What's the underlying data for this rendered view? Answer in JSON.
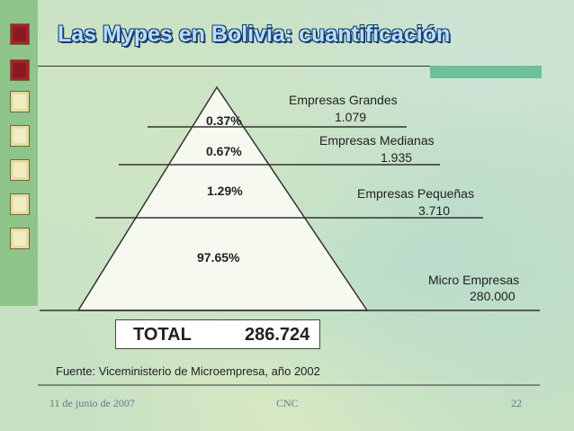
{
  "title": "Las Mypes en Bolivia: cuantificación",
  "pyramid": {
    "levels": [
      {
        "percent": "0.37%",
        "label": "Empresas Grandes",
        "value": "1.079"
      },
      {
        "percent": "0.67%",
        "label": "Empresas Medianas",
        "value": "1.935"
      },
      {
        "percent": "1.29%",
        "label": "Empresas Pequeñas",
        "value": "3.710"
      },
      {
        "percent": "97.65%",
        "label": "Micro Empresas",
        "value": "280.000"
      }
    ]
  },
  "total": {
    "label": "TOTAL",
    "value": "286.724"
  },
  "source": "Fuente: Viceministerio de Microempresa, año 2002",
  "footer": {
    "date": "11 de junio de 2007",
    "center": "CNC",
    "page": "22"
  },
  "colors": {
    "sidebar": "#8fc48b",
    "square_dark": "#8a1a22",
    "square_light": "#f2ecc4",
    "title_fill": "#b6e0ff",
    "title_outline": "#1b3b6b"
  }
}
